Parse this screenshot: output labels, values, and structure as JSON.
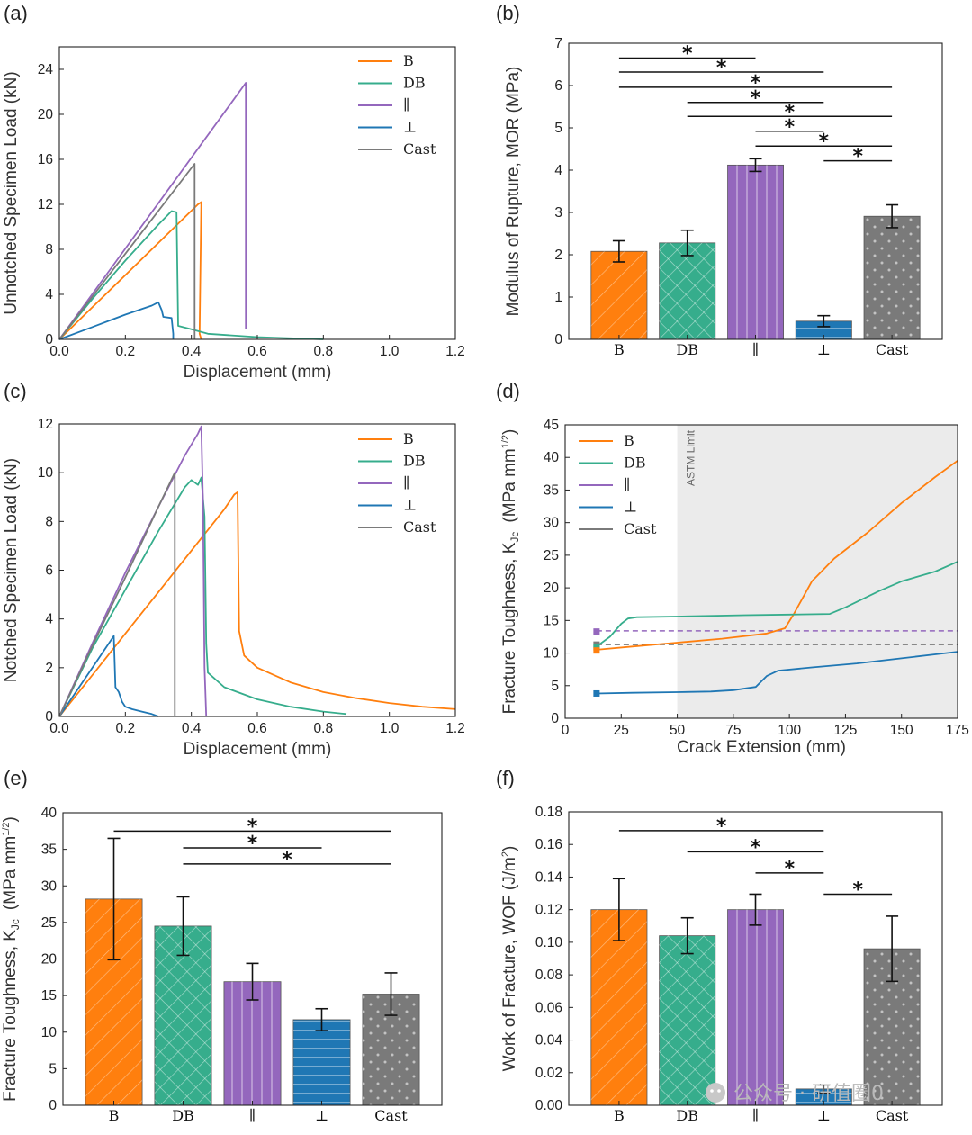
{
  "colors": {
    "B": "#ff7f0e",
    "DB": "#36ad8c",
    "par": "#9467bd",
    "perp": "#1f77b4",
    "Cast": "#7a7a7a",
    "astm_shade": "#ebebeb"
  },
  "watermark": "公众号 · 研值圈0",
  "chart_data": [
    {
      "id": "a",
      "panel_label": "(a)",
      "type": "line",
      "xlabel": "Displacement (mm)",
      "ylabel": "Unnotched Specimen Load (kN)",
      "xlim": [
        0,
        1.2
      ],
      "ylim": [
        0,
        26
      ],
      "xticks": [
        0.0,
        0.2,
        0.4,
        0.6,
        0.8,
        1.0,
        1.2
      ],
      "yticks": [
        0,
        4,
        8,
        12,
        16,
        20,
        24
      ],
      "xtick_labels": [
        "0.0",
        "0.2",
        "0.4",
        "0.6",
        "0.8",
        "1.0",
        "1.2"
      ],
      "ytick_labels": [
        "0",
        "4",
        "8",
        "12",
        "16",
        "20",
        "24"
      ],
      "legend": [
        "B",
        "DB",
        "∥",
        "⊥",
        "Cast"
      ],
      "series": [
        {
          "name": "B",
          "color_key": "B",
          "x": [
            0,
            0.42,
            0.43,
            0.425,
            0.43
          ],
          "y": [
            0,
            12.0,
            12.2,
            0.5,
            0
          ]
        },
        {
          "name": "DB",
          "color_key": "DB",
          "x": [
            0,
            0.1,
            0.2,
            0.3,
            0.34,
            0.355,
            0.36,
            0.4,
            0.45,
            0.6,
            0.8
          ],
          "y": [
            0,
            3.6,
            7.0,
            10.2,
            11.4,
            11.3,
            1.2,
            0.9,
            0.5,
            0.2,
            0
          ]
        },
        {
          "name": "∥",
          "color_key": "par",
          "x": [
            0,
            0.565,
            0.565,
            0.565
          ],
          "y": [
            0,
            22.8,
            12,
            0.9
          ]
        },
        {
          "name": "⊥",
          "color_key": "perp",
          "x": [
            0,
            0.1,
            0.2,
            0.28,
            0.3,
            0.31,
            0.315,
            0.34,
            0.345,
            0.345
          ],
          "y": [
            0,
            1.1,
            2.2,
            3.0,
            3.3,
            2.6,
            2.0,
            1.9,
            0.5,
            0
          ]
        },
        {
          "name": "Cast",
          "color_key": "Cast",
          "x": [
            0,
            0.41,
            0.41,
            0.41
          ],
          "y": [
            0,
            15.6,
            8,
            0
          ]
        }
      ]
    },
    {
      "id": "b",
      "panel_label": "(b)",
      "type": "bar",
      "ylabel": "Modulus of Rupture, MOR (MPa)",
      "ylim": [
        0,
        7
      ],
      "yticks": [
        0,
        1,
        2,
        3,
        4,
        5,
        6,
        7
      ],
      "ytick_labels": [
        "0",
        "1",
        "2",
        "3",
        "4",
        "5",
        "6",
        "7"
      ],
      "categories": [
        "B",
        "DB",
        "∥",
        "⊥",
        "Cast"
      ],
      "color_keys": [
        "B",
        "DB",
        "par",
        "perp",
        "Cast"
      ],
      "patterns": [
        "diag",
        "cross",
        "vert",
        "horiz",
        "dots"
      ],
      "values": [
        2.08,
        2.28,
        4.12,
        0.43,
        2.91
      ],
      "errors": [
        0.25,
        0.3,
        0.15,
        0.13,
        0.27
      ],
      "significance": [
        {
          "from": 0,
          "to": 2,
          "y": 6.65,
          "label": "*"
        },
        {
          "from": 0,
          "to": 3,
          "y": 6.32,
          "label": "*"
        },
        {
          "from": 0,
          "to": 4,
          "y": 5.96,
          "label": "*"
        },
        {
          "from": 1,
          "to": 3,
          "y": 5.6,
          "label": "*"
        },
        {
          "from": 1,
          "to": 4,
          "y": 5.27,
          "label": "*"
        },
        {
          "from": 2,
          "to": 3,
          "y": 4.92,
          "label": "*"
        },
        {
          "from": 2,
          "to": 4,
          "y": 4.57,
          "label": "*"
        },
        {
          "from": 3,
          "to": 4,
          "y": 4.22,
          "label": "*"
        }
      ]
    },
    {
      "id": "c",
      "panel_label": "(c)",
      "type": "line",
      "xlabel": "Displacement (mm)",
      "ylabel": "Notched Specimen Load (kN)",
      "xlim": [
        0,
        1.2
      ],
      "ylim": [
        0,
        12
      ],
      "xticks": [
        0.0,
        0.2,
        0.4,
        0.6,
        0.8,
        1.0,
        1.2
      ],
      "yticks": [
        0,
        2,
        4,
        6,
        8,
        10,
        12
      ],
      "xtick_labels": [
        "0.0",
        "0.2",
        "0.4",
        "0.6",
        "0.8",
        "1.0",
        "1.2"
      ],
      "ytick_labels": [
        "0",
        "2",
        "4",
        "6",
        "8",
        "10",
        "12"
      ],
      "legend": [
        "B",
        "DB",
        "∥",
        "⊥",
        "Cast"
      ],
      "series": [
        {
          "name": "B",
          "color_key": "B",
          "x": [
            0,
            0.1,
            0.2,
            0.3,
            0.4,
            0.5,
            0.53,
            0.54,
            0.545,
            0.56,
            0.6,
            0.7,
            0.8,
            0.9,
            1.0,
            1.1,
            1.2
          ],
          "y": [
            0,
            1.7,
            3.4,
            5.1,
            6.8,
            8.5,
            9.1,
            9.2,
            3.5,
            2.5,
            2.0,
            1.4,
            1.0,
            0.75,
            0.55,
            0.4,
            0.3
          ]
        },
        {
          "name": "DB",
          "color_key": "DB",
          "x": [
            0,
            0.1,
            0.2,
            0.3,
            0.38,
            0.4,
            0.42,
            0.43,
            0.44,
            0.445,
            0.45,
            0.5,
            0.6,
            0.7,
            0.8,
            0.87
          ],
          "y": [
            0,
            2.8,
            5.2,
            7.6,
            9.4,
            9.7,
            9.5,
            9.8,
            8.2,
            3.0,
            1.8,
            1.2,
            0.7,
            0.4,
            0.2,
            0.1
          ]
        },
        {
          "name": "∥",
          "color_key": "par",
          "x": [
            0,
            0.1,
            0.2,
            0.3,
            0.38,
            0.42,
            0.43,
            0.435,
            0.44,
            0.445
          ],
          "y": [
            0,
            3.0,
            5.9,
            8.6,
            10.7,
            11.6,
            11.9,
            9.0,
            2.0,
            0
          ]
        },
        {
          "name": "⊥",
          "color_key": "perp",
          "x": [
            0,
            0.08,
            0.15,
            0.165,
            0.17,
            0.18,
            0.19,
            0.2,
            0.22,
            0.25,
            0.28,
            0.3
          ],
          "y": [
            0,
            1.6,
            3.0,
            3.3,
            1.2,
            1.0,
            0.6,
            0.4,
            0.3,
            0.2,
            0.1,
            0
          ]
        },
        {
          "name": "Cast",
          "color_key": "Cast",
          "x": [
            0,
            0.1,
            0.2,
            0.3,
            0.35,
            0.35
          ],
          "y": [
            0,
            2.9,
            5.7,
            8.6,
            10.0,
            0
          ]
        }
      ]
    },
    {
      "id": "d",
      "panel_label": "(d)",
      "type": "line",
      "xlabel": "Crack Extension (mm)",
      "ylabel_main": "Fracture Toughness, K",
      "ylabel_sub": "Jc",
      "ylabel_units": "(MPa mm",
      "ylabel_units_sup": "1/2",
      "ylabel_close": ")",
      "xlim": [
        0,
        175
      ],
      "ylim": [
        0,
        45
      ],
      "xticks": [
        0,
        25,
        50,
        75,
        100,
        125,
        150,
        175
      ],
      "yticks": [
        0,
        5,
        10,
        15,
        20,
        25,
        30,
        35,
        40,
        45
      ],
      "xtick_labels": [
        "0",
        "25",
        "50",
        "75",
        "100",
        "125",
        "150",
        "175"
      ],
      "ytick_labels": [
        "0",
        "5",
        "10",
        "15",
        "20",
        "25",
        "30",
        "35",
        "40",
        "45"
      ],
      "legend": [
        "B",
        "DB",
        "∥",
        "⊥",
        "Cast"
      ],
      "astm_limit_label": "ASTM Limit",
      "astm_limit_x": 50,
      "series": [
        {
          "name": "B",
          "color_key": "B",
          "x": [
            14,
            30,
            50,
            70,
            90,
            98,
            102,
            110,
            120,
            135,
            150,
            165,
            175
          ],
          "y": [
            10.5,
            11.0,
            11.6,
            12.2,
            13.0,
            13.8,
            16.0,
            21.0,
            24.5,
            28.5,
            33.0,
            37.0,
            39.5
          ]
        },
        {
          "name": "DB",
          "color_key": "DB",
          "x": [
            14,
            20,
            25,
            28,
            32,
            50,
            80,
            100,
            118,
            125,
            140,
            150,
            165,
            175
          ],
          "y": [
            11.0,
            12.5,
            14.5,
            15.3,
            15.5,
            15.6,
            15.8,
            15.9,
            16.0,
            17.0,
            19.5,
            21.0,
            22.5,
            24.0
          ]
        },
        {
          "name": "⊥",
          "color_key": "perp",
          "x": [
            14,
            30,
            50,
            65,
            75,
            85,
            90,
            95,
            110,
            130,
            150,
            165,
            175
          ],
          "y": [
            3.8,
            3.9,
            4.0,
            4.1,
            4.3,
            4.8,
            6.5,
            7.3,
            7.8,
            8.4,
            9.2,
            9.8,
            10.2
          ]
        }
      ],
      "dashed_lines": [
        {
          "name": "∥",
          "color_key": "par",
          "y": 13.4,
          "x_start": 14
        },
        {
          "name": "Cast",
          "color_key": "Cast",
          "y": 11.3,
          "x_start": 14
        }
      ],
      "start_markers": [
        {
          "color_key": "par",
          "x": 14,
          "y": 13.3
        },
        {
          "color_key": "Cast",
          "x": 14,
          "y": 11.3
        },
        {
          "color_key": "DB",
          "x": 14,
          "y": 10.9
        },
        {
          "color_key": "B",
          "x": 14,
          "y": 10.4
        },
        {
          "color_key": "perp",
          "x": 14,
          "y": 3.8
        }
      ]
    },
    {
      "id": "e",
      "panel_label": "(e)",
      "type": "bar",
      "ylabel_main": "Fracture Toughness, K",
      "ylabel_sub": "Jc",
      "ylabel_units": "(MPa mm",
      "ylabel_units_sup": "1/2",
      "ylabel_close": ")",
      "ylim": [
        0,
        40
      ],
      "yticks": [
        0,
        5,
        10,
        15,
        20,
        25,
        30,
        35,
        40
      ],
      "ytick_labels": [
        "0",
        "5",
        "10",
        "15",
        "20",
        "25",
        "30",
        "35",
        "40"
      ],
      "categories": [
        "B",
        "DB",
        "∥",
        "⊥",
        "Cast"
      ],
      "color_keys": [
        "B",
        "DB",
        "par",
        "perp",
        "Cast"
      ],
      "patterns": [
        "diag",
        "cross",
        "vert",
        "horiz",
        "dots"
      ],
      "values": [
        28.2,
        24.5,
        16.9,
        11.7,
        15.2
      ],
      "errors": [
        8.3,
        4.0,
        2.5,
        1.5,
        2.9
      ],
      "significance": [
        {
          "from": 0,
          "to": 4,
          "y": 37.5,
          "label": "*"
        },
        {
          "from": 1,
          "to": 3,
          "y": 35.2,
          "label": "*"
        },
        {
          "from": 1,
          "to": 4,
          "y": 33.0,
          "label": "*"
        }
      ]
    },
    {
      "id": "f",
      "panel_label": "(f)",
      "type": "bar",
      "ylabel_main": "Work of Fracture, WOF (J/m",
      "ylabel_sup": "2",
      "ylabel_close": ")",
      "ylim": [
        0,
        0.18
      ],
      "yticks": [
        0,
        0.02,
        0.04,
        0.06,
        0.08,
        0.1,
        0.12,
        0.14,
        0.16,
        0.18
      ],
      "ytick_labels": [
        "0.00",
        "0.02",
        "0.04",
        "0.06",
        "0.08",
        "0.10",
        "0.12",
        "0.14",
        "0.16",
        "0.18"
      ],
      "categories": [
        "B",
        "DB",
        "∥",
        "⊥",
        "Cast"
      ],
      "color_keys": [
        "B",
        "DB",
        "par",
        "perp",
        "Cast"
      ],
      "patterns": [
        "diag",
        "cross",
        "vert",
        "horiz",
        "dots"
      ],
      "values": [
        0.12,
        0.104,
        0.12,
        0.01,
        0.096
      ],
      "errors": [
        0.019,
        0.011,
        0.0095,
        0.0025,
        0.02
      ],
      "significance": [
        {
          "from": 0,
          "to": 3,
          "y": 0.1685,
          "label": "*"
        },
        {
          "from": 1,
          "to": 3,
          "y": 0.1555,
          "label": "*"
        },
        {
          "from": 2,
          "to": 3,
          "y": 0.1425,
          "label": "*"
        },
        {
          "from": 3,
          "to": 4,
          "y": 0.1295,
          "label": "*"
        }
      ]
    }
  ]
}
